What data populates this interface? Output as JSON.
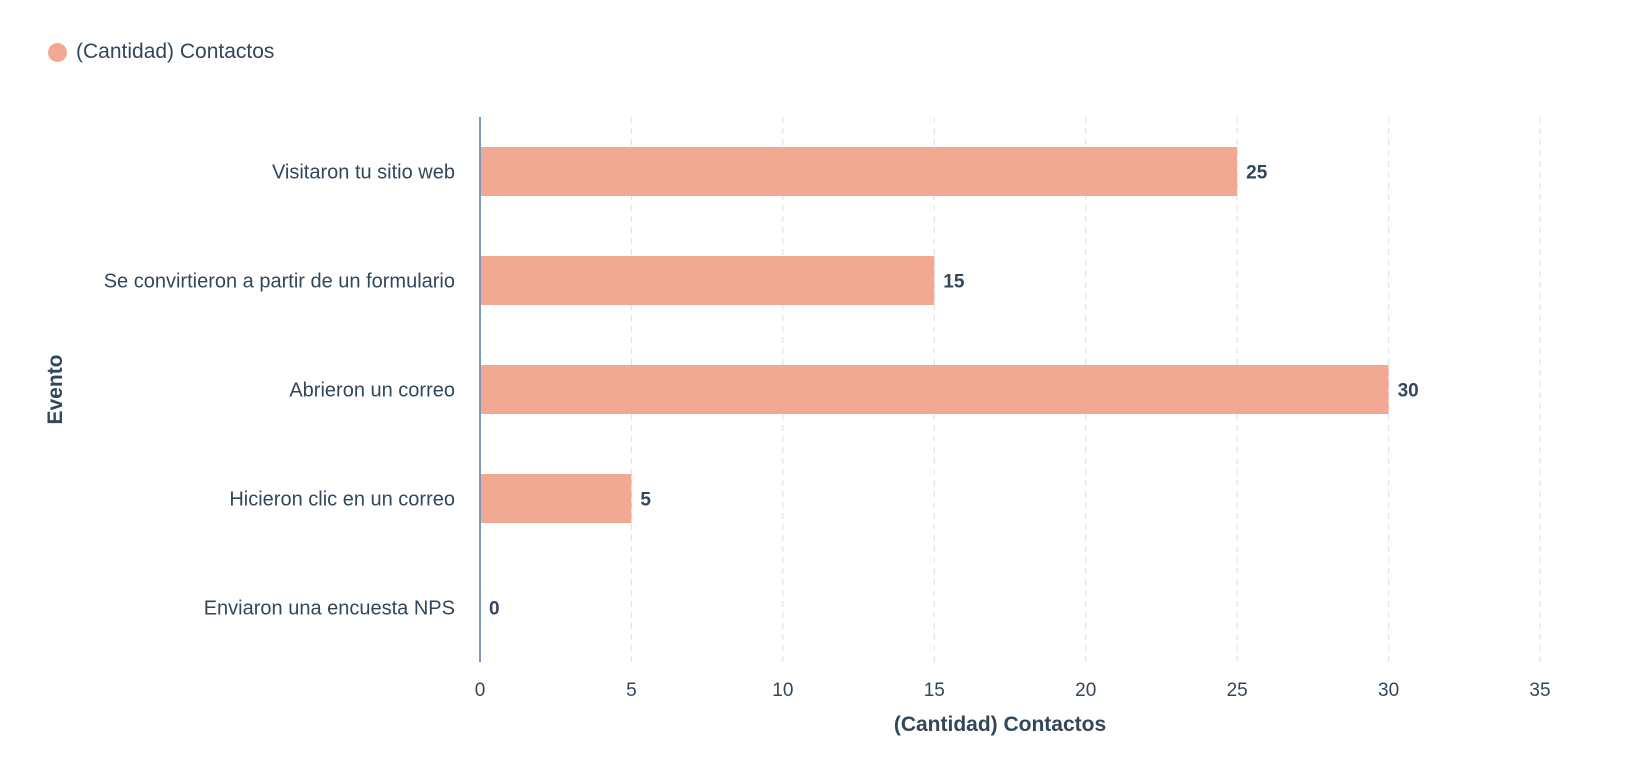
{
  "legend": {
    "label": "(Cantidad) Contactos",
    "color": "#f2a994"
  },
  "chart_data": {
    "type": "bar",
    "orientation": "horizontal",
    "categories": [
      "Visitaron tu sitio web",
      "Se convirtieron a partir de un formulario",
      "Abrieron un correo",
      "Hicieron clic en un correo",
      "Enviaron una encuesta NPS"
    ],
    "series": [
      {
        "name": "(Cantidad) Contactos",
        "values": [
          25,
          15,
          30,
          5,
          0
        ],
        "color": "#f2a994"
      }
    ],
    "xlabel": "(Cantidad) Contactos",
    "ylabel": "Evento",
    "xlim": [
      0,
      35
    ],
    "xticks": [
      0,
      5,
      10,
      15,
      20,
      25,
      30,
      35
    ],
    "grid": "vertical-dashed",
    "legend_position": "top-left",
    "data_labels": true
  }
}
